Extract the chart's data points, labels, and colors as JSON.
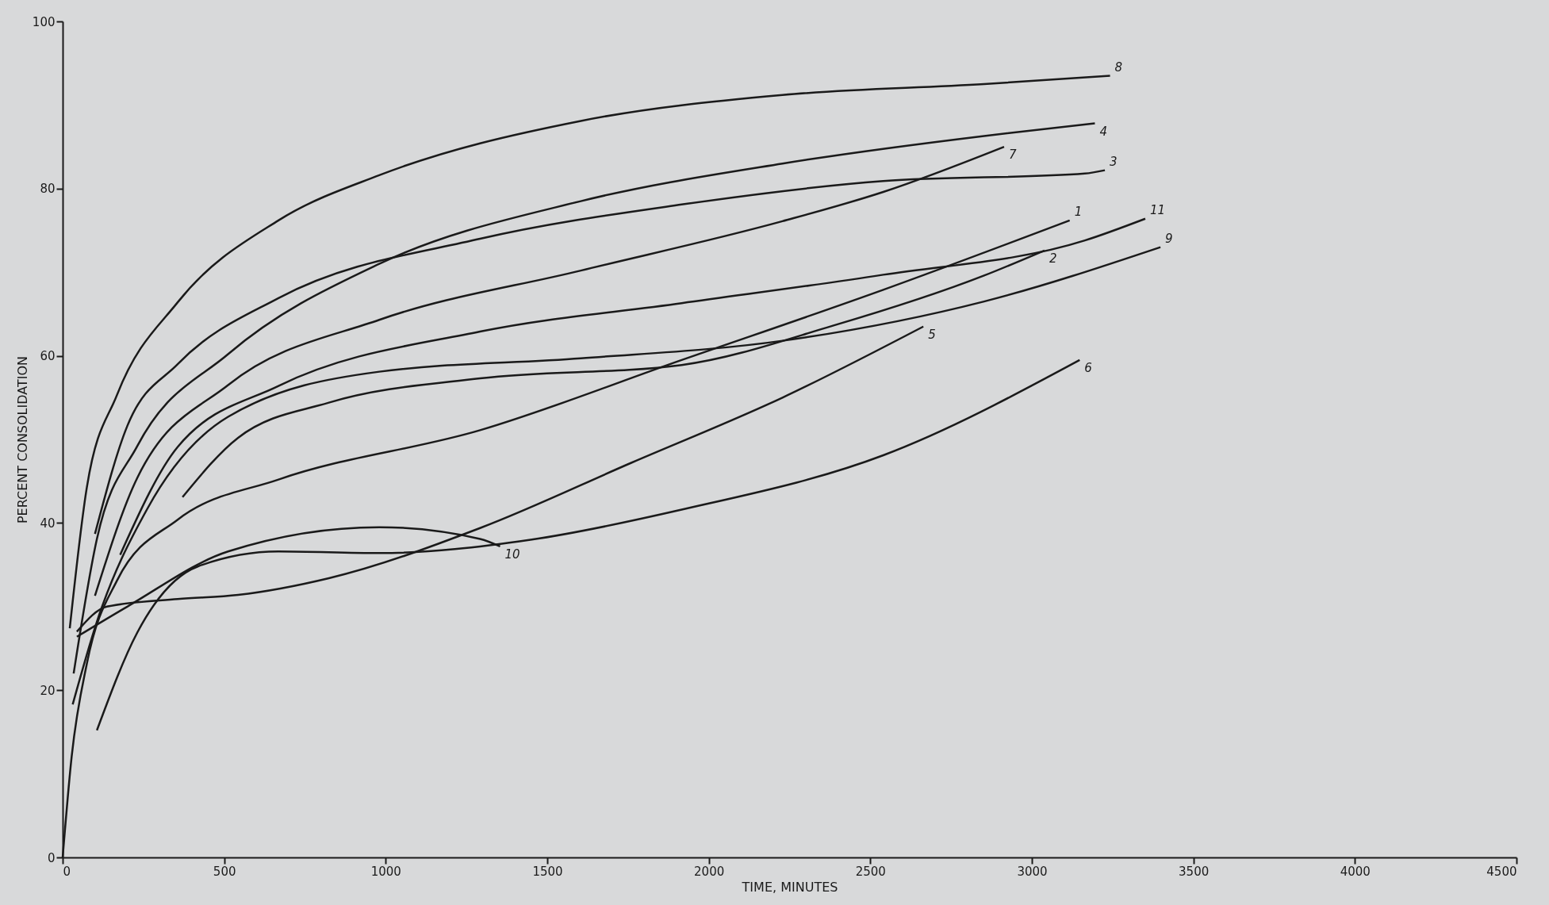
{
  "chart_data": {
    "type": "line",
    "xlabel": "TIME, MINUTES",
    "ylabel": "PERCENT CONSOLIDATION",
    "xlim": [
      0,
      4500
    ],
    "xticks": [
      0,
      500,
      1000,
      1500,
      2000,
      2500,
      3000,
      3500,
      4000,
      4500
    ],
    "ylim": [
      0,
      100
    ],
    "yticks": [
      0,
      20,
      40,
      60,
      80,
      100
    ],
    "legend": false,
    "marker": "none",
    "line_style": "solid",
    "series": [
      {
        "name": "8",
        "color": "#1a1a1a",
        "x": [
          22,
          75,
          168,
          356,
          668,
          980,
          1604,
          2228,
          2852,
          3242
        ],
        "values": [
          27.4,
          44.3,
          55.3,
          66.4,
          76.2,
          81.6,
          88.1,
          91.2,
          92.5,
          93.5
        ]
      },
      {
        "name": "4",
        "color": "#1a1a1a",
        "x": [
          34,
          106,
          231,
          512,
          980,
          1604,
          2228,
          2852,
          3195
        ],
        "values": [
          22.0,
          38.1,
          49.2,
          60.2,
          71.0,
          78.5,
          83.0,
          86.3,
          87.8
        ]
      },
      {
        "name": "3",
        "color": "#1a1a1a",
        "x": [
          100,
          200,
          356,
          668,
          1292,
          1916,
          2540,
          3164,
          3226
        ],
        "values": [
          38.7,
          51.6,
          59.0,
          66.9,
          74.0,
          78.1,
          80.9,
          81.8,
          82.2
        ]
      },
      {
        "name": "7",
        "color": "#1a1a1a",
        "x": [
          100,
          231,
          512,
          980,
          1604,
          2228,
          2540,
          2914
        ],
        "values": [
          31.3,
          45.4,
          56.5,
          64.3,
          70.2,
          76.1,
          79.6,
          85.0
        ]
      },
      {
        "name": "11",
        "color": "#1a1a1a",
        "x": [
          178,
          356,
          668,
          1292,
          1916,
          2540,
          3164,
          3351
        ],
        "values": [
          36.2,
          49.1,
          56.4,
          62.9,
          66.3,
          69.7,
          73.8,
          76.4
        ]
      },
      {
        "name": "1",
        "color": "#1a1a1a",
        "x": [
          0,
          28,
          75,
          168,
          356,
          668,
          1292,
          1916,
          2540,
          3117
        ],
        "values": [
          0,
          12.1,
          23.2,
          33.1,
          40.4,
          45.2,
          51.1,
          59.5,
          67.9,
          76.2
        ]
      },
      {
        "name": "2",
        "color": "#1a1a1a",
        "x": [
          371,
          543,
          824,
          1292,
          1916,
          2384,
          2852,
          3039
        ],
        "values": [
          43.1,
          50.2,
          54.4,
          57.3,
          58.9,
          63.6,
          69.6,
          72.6
        ]
      },
      {
        "name": "9",
        "color": "#1a1a1a",
        "x": [
          31,
          106,
          262,
          512,
          980,
          1604,
          2228,
          2852,
          3398
        ],
        "values": [
          18.3,
          28.2,
          41.7,
          52.7,
          58.1,
          59.7,
          61.8,
          66.5,
          73.0
        ]
      },
      {
        "name": "5",
        "color": "#1a1a1a",
        "x": [
          44,
          137,
          356,
          543,
          824,
          1292,
          1760,
          2228,
          2664
        ],
        "values": [
          27.0,
          30.0,
          30.9,
          31.4,
          33.4,
          39.4,
          47.2,
          55.0,
          63.5
        ]
      },
      {
        "name": "6",
        "color": "#1a1a1a",
        "x": [
          106,
          231,
          418,
          668,
          980,
          1448,
          1916,
          2540,
          3148
        ],
        "values": [
          15.2,
          26.9,
          34.8,
          36.6,
          36.4,
          38.0,
          41.6,
          48.1,
          59.5
        ]
      },
      {
        "name": "10",
        "color": "#1a1a1a",
        "x": [
          44,
          200,
          512,
          980,
          1292,
          1354
        ],
        "values": [
          26.4,
          30.0,
          36.6,
          39.5,
          38.1,
          37.2
        ]
      }
    ]
  }
}
